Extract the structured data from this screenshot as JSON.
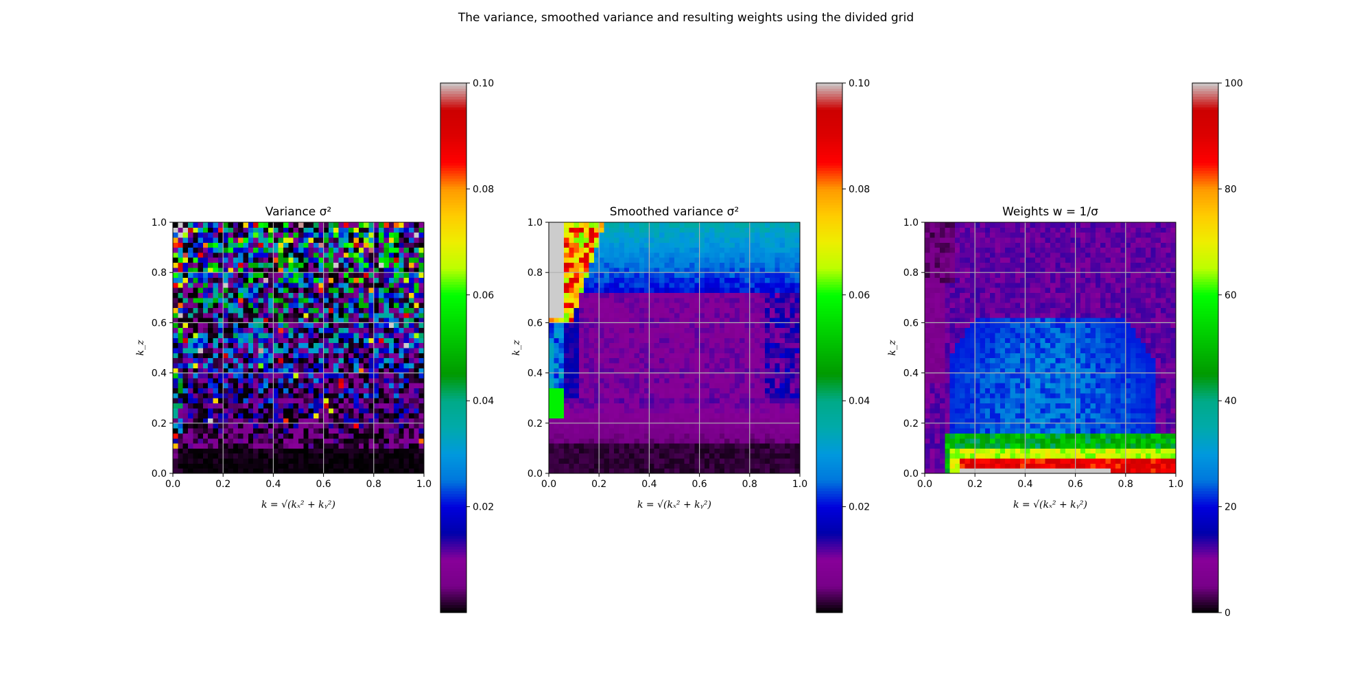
{
  "suptitle": "The variance, smoothed variance and resulting weights using the divided grid",
  "chart_data": [
    {
      "type": "heatmap",
      "title": "Variance σ²",
      "xlabel": "k = √(kₓ² + kᵧ²)",
      "ylabel": "k_z",
      "xlim": [
        0.0,
        1.0
      ],
      "ylim": [
        0.0,
        1.0
      ],
      "xticks": [
        "0.0",
        "0.2",
        "0.4",
        "0.6",
        "0.8",
        "1.0"
      ],
      "yticks": [
        "0.0",
        "0.2",
        "0.4",
        "0.6",
        "0.8",
        "1.0"
      ],
      "grid": true,
      "grid_size": [
        50,
        50
      ],
      "colormap": "nipy_spectral",
      "colorbar": {
        "range": [
          0.0,
          0.1
        ],
        "ticks": [
          "0.02",
          "0.04",
          "0.06",
          "0.08",
          "0.10"
        ],
        "tick_values": [
          0.02,
          0.04,
          0.06,
          0.08,
          0.1
        ]
      }
    },
    {
      "type": "heatmap",
      "title": "Smoothed variance σ²",
      "xlabel": "k = √(kₓ² + kᵧ²)",
      "ylabel": "k_z",
      "xlim": [
        0.0,
        1.0
      ],
      "ylim": [
        0.0,
        1.0
      ],
      "xticks": [
        "0.0",
        "0.2",
        "0.4",
        "0.6",
        "0.8",
        "1.0"
      ],
      "yticks": [
        "0.0",
        "0.2",
        "0.4",
        "0.6",
        "0.8",
        "1.0"
      ],
      "grid": true,
      "grid_size": [
        50,
        50
      ],
      "colormap": "nipy_spectral",
      "colorbar": {
        "range": [
          0.0,
          0.1
        ],
        "ticks": [
          "0.02",
          "0.04",
          "0.06",
          "0.08",
          "0.10"
        ],
        "tick_values": [
          0.02,
          0.04,
          0.06,
          0.08,
          0.1
        ]
      }
    },
    {
      "type": "heatmap",
      "title": "Weights w = 1/σ",
      "xlabel": "k = √(kₓ² + kᵧ²)",
      "ylabel": "k_z",
      "xlim": [
        0.0,
        1.0
      ],
      "ylim": [
        0.0,
        1.0
      ],
      "xticks": [
        "0.0",
        "0.2",
        "0.4",
        "0.6",
        "0.8",
        "1.0"
      ],
      "yticks": [
        "0.0",
        "0.2",
        "0.4",
        "0.6",
        "0.8",
        "1.0"
      ],
      "grid": true,
      "grid_size": [
        50,
        50
      ],
      "colormap": "nipy_spectral",
      "colorbar": {
        "range": [
          0,
          100
        ],
        "ticks": [
          "0",
          "20",
          "40",
          "60",
          "80",
          "100"
        ],
        "tick_values": [
          0,
          20,
          40,
          60,
          80,
          100
        ]
      }
    }
  ]
}
